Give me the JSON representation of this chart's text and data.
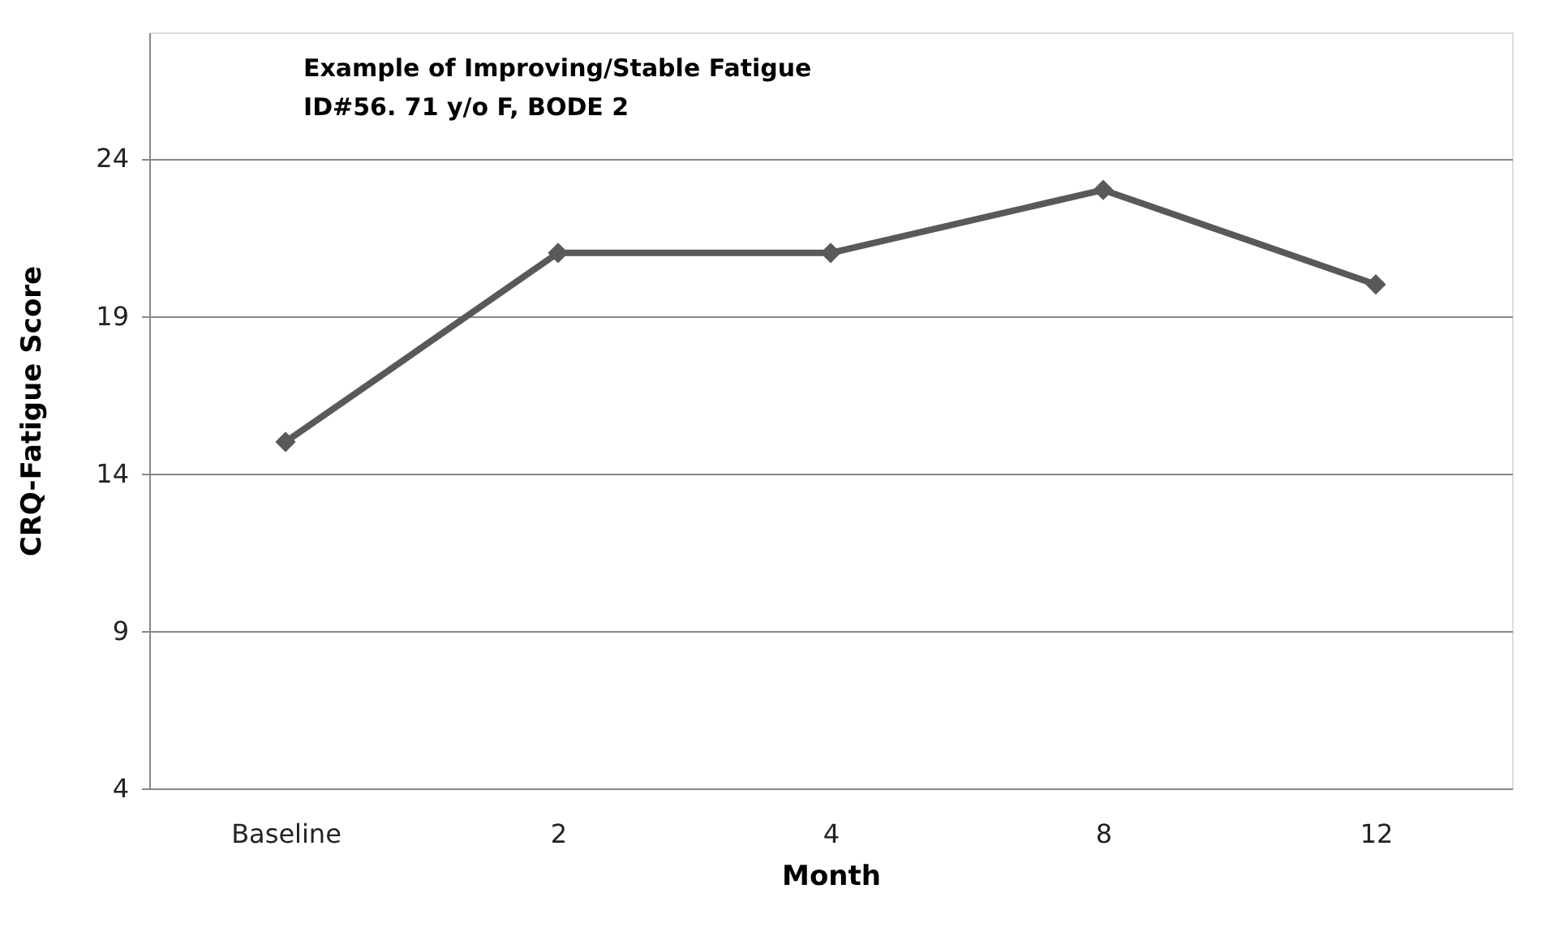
{
  "chart_data": {
    "type": "line",
    "xlabel": "Month",
    "ylabel": "CRQ-Fatigue Score",
    "annotations": [
      "Example of Improving/Stable Fatigue",
      "ID#56. 71 y/o F,  BODE 2"
    ],
    "categories": [
      "Baseline",
      "2",
      "4",
      "8",
      "12"
    ],
    "series": [
      {
        "color": "#595959",
        "values": [
          15,
          21,
          21,
          23,
          20
        ]
      }
    ],
    "ylim": [
      4,
      28
    ],
    "yticks": [
      4,
      9,
      14,
      19,
      24
    ],
    "grid": "y",
    "marker": "diamond",
    "line_style": "solid"
  }
}
